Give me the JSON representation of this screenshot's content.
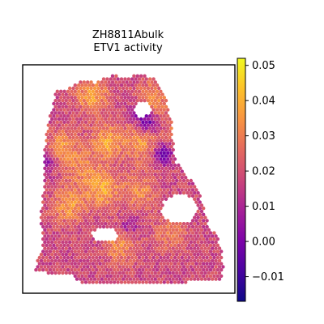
{
  "chart_data": {
    "type": "heatmap",
    "subtype": "spatial-hexbin",
    "title_lines": [
      "ZH8811Abulk",
      "ETV1 activity"
    ],
    "colormap": "plasma",
    "value_range": [
      -0.017,
      0.052
    ],
    "colorbar": {
      "ticks": [
        0.05,
        0.04,
        0.03,
        0.02,
        0.01,
        0.0,
        -0.01
      ],
      "tick_labels": [
        "0.05",
        "0.04",
        "0.03",
        "0.02",
        "0.01",
        "0.00",
        "−0.01"
      ]
    },
    "axes": {
      "xticks": "none",
      "yticks": "none",
      "grid": false,
      "frame": true
    },
    "hotspots": [
      {
        "x": 0.18,
        "y": 0.62,
        "value": 0.036
      },
      {
        "x": 0.36,
        "y": 0.55,
        "value": 0.038
      },
      {
        "x": 0.55,
        "y": 0.56,
        "value": 0.033
      },
      {
        "x": 0.38,
        "y": 0.32,
        "value": 0.037
      },
      {
        "x": 0.56,
        "y": 0.33,
        "value": 0.035
      },
      {
        "x": 0.3,
        "y": 0.1,
        "value": 0.037
      },
      {
        "x": 0.62,
        "y": 0.12,
        "value": 0.034
      },
      {
        "x": 0.8,
        "y": 0.28,
        "value": 0.038
      },
      {
        "x": 0.45,
        "y": 0.82,
        "value": 0.032
      },
      {
        "x": 0.72,
        "y": 0.76,
        "value": 0.03
      },
      {
        "x": 0.14,
        "y": 0.35,
        "value": 0.034
      },
      {
        "x": 0.25,
        "y": 0.45,
        "value": 0.03
      }
    ],
    "coldspots": [
      {
        "x": 0.6,
        "y": 0.23,
        "value": -0.004
      },
      {
        "x": 0.68,
        "y": 0.38,
        "value": -0.006
      },
      {
        "x": 0.55,
        "y": 0.18,
        "value": 0.002
      },
      {
        "x": 0.07,
        "y": 0.42,
        "value": 0.002
      },
      {
        "x": 0.5,
        "y": 0.72,
        "value": 0.005
      }
    ],
    "holes": [
      {
        "x": 0.7,
        "y": 0.53
      },
      {
        "x": 0.38,
        "y": 0.22
      },
      {
        "x": 0.33,
        "y": 0.78
      }
    ]
  }
}
